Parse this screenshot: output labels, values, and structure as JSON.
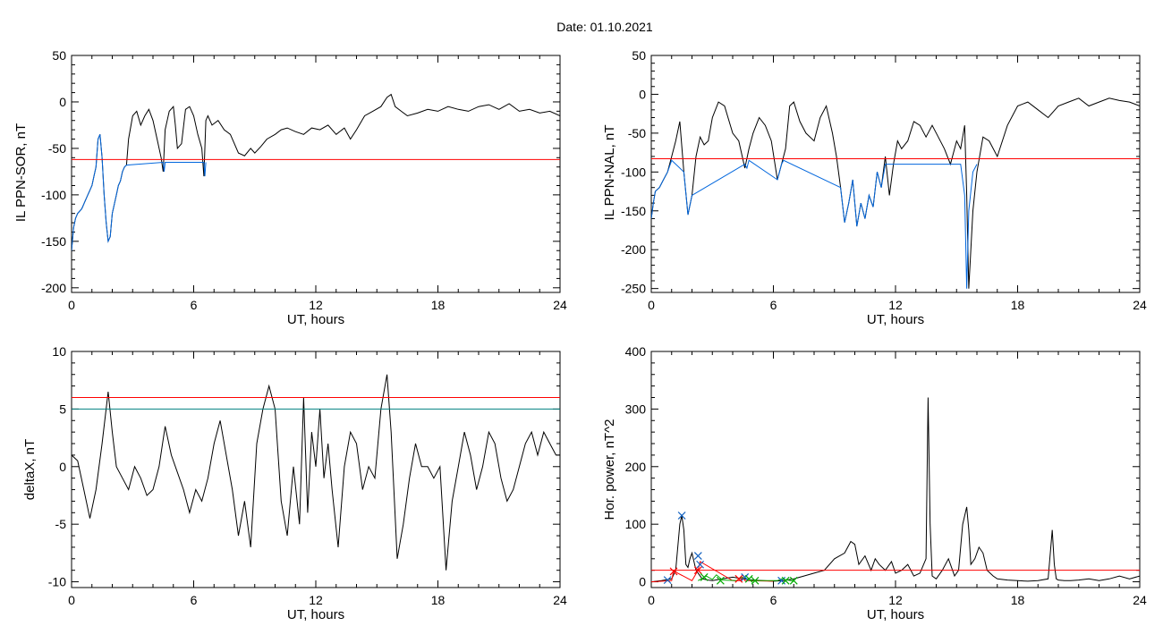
{
  "figure": {
    "title": "Date:  01.10.2021"
  },
  "chart_data": [
    {
      "id": "p1",
      "type": "line",
      "ylabel": "IL PPN-SOR, nT",
      "xlabel": "UT, hours",
      "xlim": [
        0,
        24
      ],
      "ylim": [
        -205,
        50
      ],
      "xticks": [
        0,
        6,
        12,
        18,
        24
      ],
      "yticks": [
        50,
        0,
        -50,
        -100,
        -150,
        -200
      ],
      "threshold": {
        "value": -62,
        "color": "#ff0000"
      },
      "series": [
        {
          "color": "#000000",
          "x": [
            0,
            0.1,
            0.2,
            0.3,
            0.5,
            0.7,
            0.9,
            1.0,
            1.1,
            1.2,
            1.3,
            1.4,
            1.5,
            1.6,
            1.7,
            1.8,
            1.9,
            2.0,
            2.1,
            2.2,
            2.3,
            2.4,
            2.5,
            2.6,
            2.7,
            2.8,
            3.0,
            3.2,
            3.4,
            3.6,
            3.8,
            4.0,
            4.2,
            4.4,
            4.5,
            4.6,
            4.7,
            4.8,
            5.0,
            5.1,
            5.2,
            5.4,
            5.6,
            5.8,
            6.0,
            6.2,
            6.4,
            6.5,
            6.6,
            6.7,
            6.9,
            7.2,
            7.5,
            7.8,
            8.0,
            8.2,
            8.5,
            8.8,
            9.0,
            9.3,
            9.6,
            10.0,
            10.3,
            10.6,
            11.0,
            11.4,
            11.8,
            12.2,
            12.6,
            13.0,
            13.4,
            13.7,
            14.0,
            14.4,
            14.8,
            15.2,
            15.5,
            15.7,
            15.9,
            16.2,
            16.5,
            17.0,
            17.5,
            18.0,
            18.5,
            19.0,
            19.5,
            20.0,
            20.5,
            21.0,
            21.5,
            22.0,
            22.5,
            23.0,
            23.5,
            24
          ],
          "y": [
            -160,
            -135,
            -125,
            -120,
            -115,
            -105,
            -95,
            -90,
            -80,
            -70,
            -40,
            -35,
            -60,
            -100,
            -130,
            -150,
            -145,
            -120,
            -110,
            -100,
            -90,
            -85,
            -75,
            -70,
            -68,
            -40,
            -15,
            -10,
            -25,
            -15,
            -8,
            -20,
            -40,
            -60,
            -75,
            -30,
            -20,
            -10,
            -5,
            -25,
            -50,
            -45,
            -8,
            -5,
            -15,
            -35,
            -50,
            -80,
            -20,
            -15,
            -25,
            -20,
            -30,
            -35,
            -45,
            -55,
            -58,
            -50,
            -55,
            -48,
            -40,
            -35,
            -30,
            -28,
            -32,
            -35,
            -28,
            -30,
            -25,
            -35,
            -28,
            -40,
            -30,
            -15,
            -10,
            -5,
            5,
            8,
            -5,
            -10,
            -15,
            -12,
            -8,
            -10,
            -5,
            -8,
            -10,
            -5,
            -3,
            -8,
            -2,
            -10,
            -8,
            -12,
            -10,
            -15
          ]
        },
        {
          "color": "#0066dd",
          "x": [
            0,
            0.1,
            0.2,
            0.3,
            0.5,
            0.7,
            0.9,
            1.0,
            1.1,
            1.2,
            1.3,
            1.4,
            1.5,
            1.6,
            1.7,
            1.8,
            1.9,
            2.0,
            2.1,
            2.2,
            2.3,
            2.4,
            2.5,
            2.6,
            2.7,
            4.5,
            4.55,
            4.6,
            6.5,
            6.55,
            6.6
          ],
          "y": [
            -160,
            -135,
            -125,
            -120,
            -115,
            -105,
            -95,
            -90,
            -80,
            -70,
            -40,
            -35,
            -60,
            -100,
            -130,
            -150,
            -145,
            -120,
            -110,
            -100,
            -90,
            -85,
            -75,
            -70,
            -68,
            -65,
            -75,
            -65,
            -65,
            -80,
            -65
          ]
        }
      ]
    },
    {
      "id": "p2",
      "type": "line",
      "ylabel": "IL PPN-NAL, nT",
      "xlabel": "UT, hours",
      "xlim": [
        0,
        24
      ],
      "ylim": [
        -255,
        50
      ],
      "xticks": [
        0,
        6,
        12,
        18,
        24
      ],
      "yticks": [
        50,
        0,
        -50,
        -100,
        -150,
        -200,
        -250
      ],
      "threshold": {
        "value": -83,
        "color": "#ff0000"
      },
      "series": [
        {
          "color": "#000000",
          "x": [
            0,
            0.1,
            0.2,
            0.4,
            0.6,
            0.8,
            1.0,
            1.2,
            1.4,
            1.6,
            1.8,
            2.0,
            2.2,
            2.4,
            2.6,
            2.8,
            3.0,
            3.3,
            3.6,
            4.0,
            4.3,
            4.6,
            4.8,
            5.0,
            5.3,
            5.6,
            5.9,
            6.2,
            6.4,
            6.6,
            6.8,
            7.0,
            7.3,
            7.6,
            8.0,
            8.3,
            8.6,
            8.9,
            9.1,
            9.3,
            9.5,
            9.7,
            9.9,
            10.1,
            10.3,
            10.5,
            10.7,
            10.9,
            11.1,
            11.3,
            11.5,
            11.7,
            11.9,
            12.1,
            12.3,
            12.6,
            12.9,
            13.2,
            13.5,
            13.8,
            14.1,
            14.4,
            14.7,
            15.0,
            15.2,
            15.4,
            15.5,
            15.6,
            15.8,
            16.0,
            16.3,
            16.6,
            17.0,
            17.5,
            18.0,
            18.5,
            19.0,
            19.5,
            20.0,
            20.5,
            21.0,
            21.5,
            22.0,
            22.5,
            23.0,
            23.5,
            24
          ],
          "y": [
            -160,
            -140,
            -125,
            -120,
            -110,
            -100,
            -80,
            -60,
            -35,
            -100,
            -155,
            -130,
            -80,
            -55,
            -65,
            -60,
            -30,
            -10,
            -15,
            -50,
            -60,
            -95,
            -70,
            -50,
            -30,
            -40,
            -60,
            -110,
            -90,
            -70,
            -15,
            -10,
            -35,
            -50,
            -60,
            -30,
            -15,
            -50,
            -80,
            -120,
            -165,
            -140,
            -110,
            -170,
            -140,
            -160,
            -130,
            -145,
            -100,
            -120,
            -80,
            -130,
            -90,
            -60,
            -70,
            -60,
            -35,
            -40,
            -55,
            -40,
            -55,
            -70,
            -90,
            -60,
            -70,
            -40,
            -130,
            -250,
            -150,
            -100,
            -55,
            -60,
            -80,
            -40,
            -15,
            -10,
            -20,
            -30,
            -15,
            -10,
            -5,
            -15,
            -10,
            -5,
            -8,
            -10,
            -15
          ]
        },
        {
          "color": "#0066dd",
          "x": [
            0,
            0.1,
            0.2,
            0.4,
            0.6,
            0.8,
            1.0,
            1.6,
            1.8,
            2.0,
            4.6,
            4.7,
            4.8,
            6.2,
            6.4,
            6.5,
            9.3,
            9.5,
            9.7,
            9.9,
            10.1,
            10.3,
            10.5,
            10.7,
            10.9,
            11.1,
            11.3,
            11.5,
            15.2,
            15.4,
            15.5,
            15.6,
            15.8,
            16.0
          ],
          "y": [
            -160,
            -140,
            -125,
            -120,
            -110,
            -100,
            -85,
            -100,
            -155,
            -130,
            -90,
            -95,
            -85,
            -110,
            -90,
            -85,
            -120,
            -165,
            -140,
            -110,
            -170,
            -140,
            -160,
            -130,
            -145,
            -100,
            -120,
            -90,
            -90,
            -130,
            -250,
            -150,
            -100,
            -90
          ]
        }
      ]
    },
    {
      "id": "p3",
      "type": "line",
      "ylabel": "deltaX, nT",
      "xlabel": "UT, hours",
      "xlim": [
        0,
        24
      ],
      "ylim": [
        -10.5,
        10
      ],
      "xticks": [
        0,
        6,
        12,
        18,
        24
      ],
      "yticks": [
        10,
        5,
        0,
        -5,
        -10
      ],
      "thresholds": [
        {
          "value": 6,
          "color": "#ff0000"
        },
        {
          "value": 5,
          "color": "#008080"
        }
      ],
      "series": [
        {
          "color": "#000000",
          "x": [
            0,
            0.3,
            0.6,
            0.9,
            1.2,
            1.5,
            1.8,
            2.0,
            2.2,
            2.5,
            2.8,
            3.1,
            3.4,
            3.7,
            4.0,
            4.3,
            4.6,
            4.9,
            5.2,
            5.5,
            5.8,
            6.1,
            6.4,
            6.7,
            7.0,
            7.3,
            7.6,
            7.9,
            8.2,
            8.5,
            8.8,
            9.1,
            9.4,
            9.7,
            10.0,
            10.3,
            10.6,
            10.9,
            11.2,
            11.4,
            11.6,
            11.8,
            12.0,
            12.2,
            12.4,
            12.6,
            12.8,
            13.1,
            13.4,
            13.7,
            14.0,
            14.3,
            14.6,
            14.9,
            15.2,
            15.5,
            15.7,
            16.0,
            16.3,
            16.6,
            16.9,
            17.2,
            17.5,
            17.8,
            18.1,
            18.4,
            18.7,
            19.0,
            19.3,
            19.6,
            19.9,
            20.2,
            20.5,
            20.8,
            21.1,
            21.4,
            21.7,
            22.0,
            22.3,
            22.6,
            22.9,
            23.2,
            23.5,
            23.8,
            24
          ],
          "y": [
            1,
            0.5,
            -2,
            -4.5,
            -2,
            2,
            6.5,
            3,
            0,
            -1,
            -2,
            0,
            -1,
            -2.5,
            -2,
            0,
            3.5,
            1,
            -0.5,
            -2,
            -4,
            -2,
            -3,
            -1,
            2,
            4,
            1,
            -2,
            -6,
            -3,
            -7,
            2,
            5,
            7,
            5,
            -3,
            -6,
            0,
            -5,
            6,
            -4,
            3,
            0,
            5,
            -1,
            2,
            -2,
            -7,
            0,
            3,
            2,
            -2,
            0,
            -1,
            5,
            8,
            3,
            -8,
            -5,
            -1,
            2,
            0,
            0,
            -1,
            0,
            -9,
            -3,
            0,
            3,
            1,
            -2,
            0,
            3,
            2,
            -1,
            -3,
            -2,
            0,
            2,
            3,
            1,
            3,
            2,
            1,
            1
          ]
        }
      ]
    },
    {
      "id": "p4",
      "type": "line",
      "ylabel": "Hor. power, nT^2",
      "xlabel": "UT, hours",
      "xlim": [
        0,
        24
      ],
      "ylim": [
        -10,
        400
      ],
      "xticks": [
        0,
        6,
        12,
        18,
        24
      ],
      "yticks": [
        400,
        300,
        200,
        100,
        0
      ],
      "threshold": {
        "value": 20,
        "color": "#ff0000"
      },
      "series": [
        {
          "color": "#000000",
          "x": [
            0,
            0.5,
            1.0,
            1.2,
            1.4,
            1.5,
            1.6,
            1.7,
            1.8,
            1.9,
            2.0,
            2.2,
            2.4,
            2.5,
            2.8,
            3.0,
            3.5,
            4.0,
            4.5,
            5.0,
            5.5,
            6.0,
            6.5,
            7.0,
            7.5,
            8.0,
            8.5,
            9.0,
            9.5,
            9.8,
            10.0,
            10.2,
            10.5,
            10.8,
            11.0,
            11.2,
            11.5,
            11.8,
            12.0,
            12.3,
            12.6,
            12.9,
            13.2,
            13.5,
            13.6,
            13.7,
            13.8,
            14.0,
            14.3,
            14.6,
            14.9,
            15.1,
            15.3,
            15.5,
            15.6,
            15.7,
            15.9,
            16.1,
            16.3,
            16.5,
            16.8,
            17.0,
            17.5,
            18.0,
            18.5,
            19.0,
            19.5,
            19.7,
            19.8,
            19.9,
            20.0,
            20.3,
            20.6,
            21.0,
            21.5,
            22.0,
            22.5,
            23.0,
            23.5,
            24
          ],
          "y": [
            0,
            2,
            5,
            20,
            100,
            115,
            90,
            30,
            25,
            40,
            50,
            20,
            10,
            5,
            3,
            2,
            5,
            8,
            5,
            3,
            2,
            1,
            2,
            5,
            10,
            15,
            20,
            40,
            50,
            70,
            65,
            30,
            45,
            20,
            40,
            30,
            20,
            35,
            15,
            20,
            30,
            10,
            15,
            40,
            320,
            100,
            10,
            5,
            20,
            40,
            10,
            20,
            100,
            130,
            90,
            30,
            40,
            60,
            50,
            20,
            10,
            5,
            3,
            2,
            1,
            2,
            5,
            90,
            30,
            5,
            3,
            2,
            2,
            3,
            5,
            2,
            5,
            10,
            5,
            10
          ]
        },
        {
          "color": "#ff0000",
          "x": [
            0,
            1.0,
            1.1,
            1.3,
            2.0,
            2.3,
            2.4,
            4.0,
            4.4,
            4.5,
            4.6,
            6.0
          ],
          "y": [
            0,
            2,
            20,
            15,
            2,
            20,
            35,
            2,
            2,
            8,
            2,
            1
          ]
        },
        {
          "color": "#00aa00",
          "x": [
            2.3,
            2.5,
            2.7,
            3.0,
            3.2,
            3.5,
            4.2,
            4.4,
            4.7,
            5.0,
            6.2,
            6.4,
            6.7,
            7.0
          ],
          "y": [
            2,
            6,
            10,
            4,
            12,
            3,
            2,
            8,
            5,
            2,
            2,
            5,
            3,
            1
          ]
        }
      ],
      "markers": {
        "blue": {
          "color": "#1060c0",
          "x": [
            0.8,
            1.5,
            2.3,
            2.4,
            4.6,
            6.4
          ],
          "y": [
            3,
            115,
            45,
            30,
            8,
            2
          ]
        },
        "red": {
          "color": "#ff0000",
          "x": [
            1.1,
            2.3,
            4.3
          ],
          "y": [
            18,
            20,
            5
          ]
        },
        "green": {
          "color": "#00aa00",
          "x": [
            2.6,
            3.4,
            4.8,
            5.1,
            6.6,
            7.0
          ],
          "y": [
            8,
            2,
            5,
            2,
            2,
            2
          ]
        }
      }
    }
  ]
}
